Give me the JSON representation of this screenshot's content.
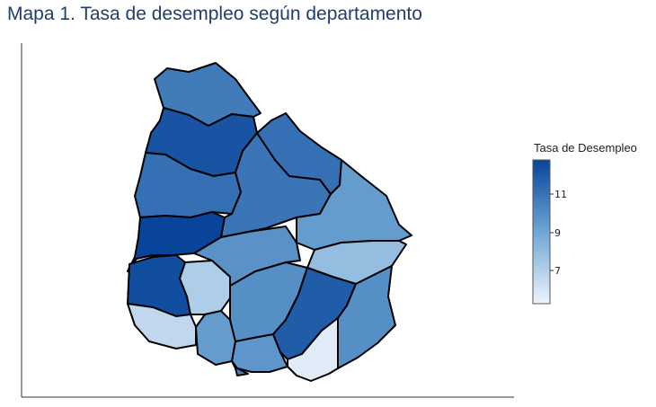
{
  "title": "Mapa 1. Tasa de desempleo según departamento",
  "legend": {
    "title": "Tasa de Desempleo",
    "ticks": [
      "11",
      "9",
      "7"
    ],
    "color_low": "#eef3fc",
    "color_high": "#08449a"
  },
  "regions": [
    {
      "id": "artigas",
      "level": 0.72
    },
    {
      "id": "salto",
      "level": 0.92
    },
    {
      "id": "paysandu",
      "level": 0.78
    },
    {
      "id": "rio-negro",
      "level": 1.0
    },
    {
      "id": "soriano",
      "level": 0.95
    },
    {
      "id": "colonia",
      "level": 0.18
    },
    {
      "id": "san-jose",
      "level": 0.25
    },
    {
      "id": "montevideo",
      "level": 0.55
    },
    {
      "id": "canelones",
      "level": 0.58
    },
    {
      "id": "florida",
      "level": 0.62
    },
    {
      "id": "flores",
      "level": 0.6
    },
    {
      "id": "durazno",
      "level": 0.75
    },
    {
      "id": "tacuarembo",
      "level": 0.78
    },
    {
      "id": "rivera",
      "level": 0.55
    },
    {
      "id": "cerro-largo",
      "level": 0.35
    },
    {
      "id": "treinta-y-tres",
      "level": 0.88
    },
    {
      "id": "lavalleja",
      "level": 0.62
    },
    {
      "id": "maldonado",
      "level": 0.05
    },
    {
      "id": "rocha",
      "level": 0.68
    }
  ]
}
